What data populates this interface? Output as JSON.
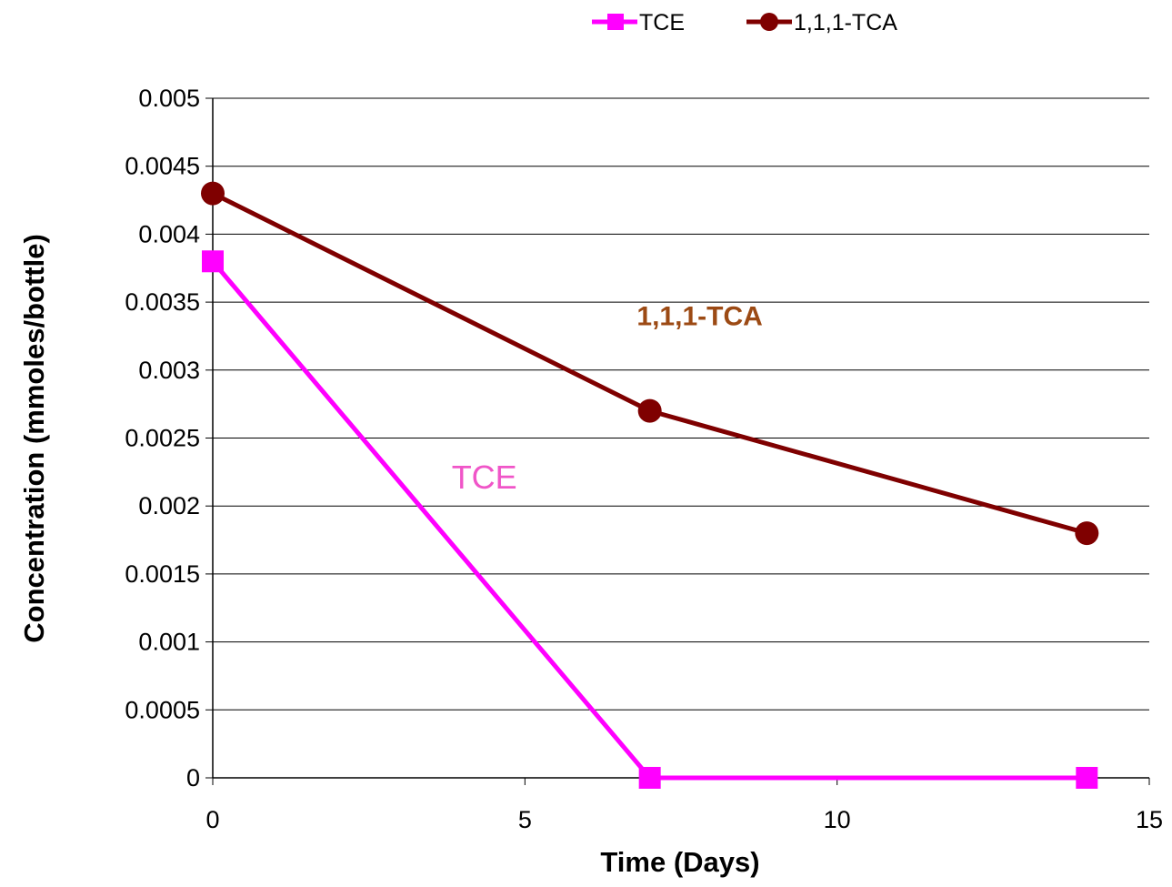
{
  "chart_data": {
    "type": "line",
    "title": "",
    "xlabel": "Time (Days)",
    "ylabel": "Concentration (mmoles/bottle)",
    "xlim": [
      0,
      15
    ],
    "ylim": [
      0,
      0.005
    ],
    "x_ticks": [
      "0",
      "5",
      "10",
      "15"
    ],
    "y_ticks": [
      "0",
      "0.0005",
      "0.001",
      "0.0015",
      "0.002",
      "0.0025",
      "0.003",
      "0.0035",
      "0.004",
      "0.0045",
      "0.005"
    ],
    "grid": "horizontal",
    "legend_position": "top",
    "series": [
      {
        "name": "TCE",
        "color": "#ff00ff",
        "marker": "square",
        "x": [
          0,
          7,
          14
        ],
        "y": [
          0.0038,
          0,
          0
        ]
      },
      {
        "name": "1,1,1-TCA",
        "color": "#7f0000",
        "marker": "circle",
        "x": [
          0,
          7,
          14
        ],
        "y": [
          0.0043,
          0.0027,
          0.0018
        ]
      }
    ],
    "annotations": [
      {
        "text": "1,1,1-TCA",
        "color": "#9c4a14",
        "x": 7.8,
        "y": 0.00333
      },
      {
        "text": "TCE",
        "color": "#f055c8",
        "x": 4.35,
        "y": 0.00213
      }
    ]
  }
}
